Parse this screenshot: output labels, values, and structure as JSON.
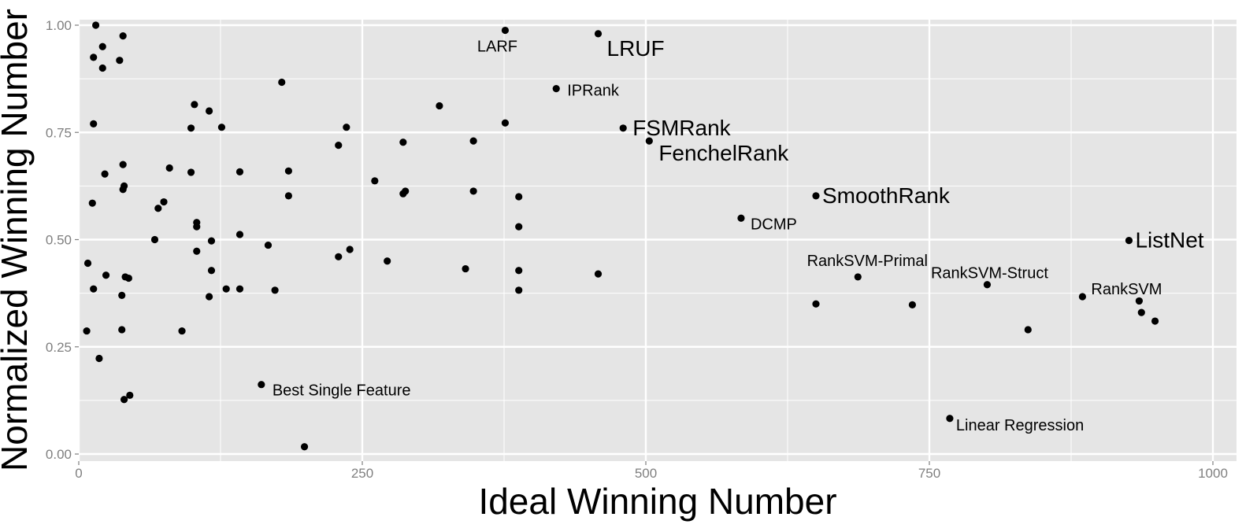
{
  "chart_data": {
    "type": "scatter",
    "title": "",
    "xlabel": "Ideal Winning Number",
    "ylabel": "Normalized Winning Number",
    "xlim": [
      0,
      1000
    ],
    "ylim": [
      0,
      1.0
    ],
    "x_ticks": [
      0,
      250,
      500,
      750,
      1000
    ],
    "x_tick_labels": [
      "0",
      "250",
      "500",
      "750",
      "1000"
    ],
    "y_ticks": [
      0,
      0.25,
      0.5,
      0.75,
      1.0
    ],
    "y_tick_labels": [
      "0.00",
      "0.25",
      "0.50",
      "0.75",
      "1.00"
    ],
    "grid": true,
    "background": "#e5e5e5",
    "grid_color": "#ffffff",
    "point_color": "#000000",
    "points": [
      {
        "x": 15,
        "y": 1.0
      },
      {
        "x": 39,
        "y": 0.975
      },
      {
        "x": 21,
        "y": 0.95
      },
      {
        "x": 13,
        "y": 0.925
      },
      {
        "x": 36,
        "y": 0.918
      },
      {
        "x": 21,
        "y": 0.9
      },
      {
        "x": 13,
        "y": 0.77
      },
      {
        "x": 39,
        "y": 0.675
      },
      {
        "x": 23,
        "y": 0.653
      },
      {
        "x": 40,
        "y": 0.625
      },
      {
        "x": 39,
        "y": 0.617
      },
      {
        "x": 12,
        "y": 0.585
      },
      {
        "x": 8,
        "y": 0.445
      },
      {
        "x": 24,
        "y": 0.417
      },
      {
        "x": 41,
        "y": 0.413
      },
      {
        "x": 44,
        "y": 0.41
      },
      {
        "x": 13,
        "y": 0.385
      },
      {
        "x": 38,
        "y": 0.37
      },
      {
        "x": 38,
        "y": 0.29
      },
      {
        "x": 7,
        "y": 0.287
      },
      {
        "x": 18,
        "y": 0.223
      },
      {
        "x": 45,
        "y": 0.137
      },
      {
        "x": 40,
        "y": 0.127
      },
      {
        "x": 80,
        "y": 0.667
      },
      {
        "x": 75,
        "y": 0.588
      },
      {
        "x": 70,
        "y": 0.573
      },
      {
        "x": 67,
        "y": 0.5
      },
      {
        "x": 91,
        "y": 0.287
      },
      {
        "x": 102,
        "y": 0.815
      },
      {
        "x": 99,
        "y": 0.76
      },
      {
        "x": 99,
        "y": 0.657
      },
      {
        "x": 104,
        "y": 0.54
      },
      {
        "x": 104,
        "y": 0.53
      },
      {
        "x": 104,
        "y": 0.473
      },
      {
        "x": 115,
        "y": 0.8
      },
      {
        "x": 117,
        "y": 0.497
      },
      {
        "x": 117,
        "y": 0.428
      },
      {
        "x": 115,
        "y": 0.367
      },
      {
        "x": 126,
        "y": 0.762
      },
      {
        "x": 130,
        "y": 0.385
      },
      {
        "x": 142,
        "y": 0.658
      },
      {
        "x": 142,
        "y": 0.512
      },
      {
        "x": 142,
        "y": 0.385
      },
      {
        "x": 161,
        "y": 0.162
      },
      {
        "x": 167,
        "y": 0.487
      },
      {
        "x": 173,
        "y": 0.382
      },
      {
        "x": 179,
        "y": 0.867
      },
      {
        "x": 185,
        "y": 0.66
      },
      {
        "x": 185,
        "y": 0.602
      },
      {
        "x": 199,
        "y": 0.017
      },
      {
        "x": 229,
        "y": 0.72
      },
      {
        "x": 236,
        "y": 0.762
      },
      {
        "x": 229,
        "y": 0.46
      },
      {
        "x": 239,
        "y": 0.477
      },
      {
        "x": 261,
        "y": 0.637
      },
      {
        "x": 272,
        "y": 0.45
      },
      {
        "x": 286,
        "y": 0.727
      },
      {
        "x": 286,
        "y": 0.607
      },
      {
        "x": 288,
        "y": 0.613
      },
      {
        "x": 318,
        "y": 0.812
      },
      {
        "x": 341,
        "y": 0.432
      },
      {
        "x": 348,
        "y": 0.73
      },
      {
        "x": 348,
        "y": 0.613
      },
      {
        "x": 376,
        "y": 0.988
      },
      {
        "x": 376,
        "y": 0.772
      },
      {
        "x": 388,
        "y": 0.6
      },
      {
        "x": 388,
        "y": 0.53
      },
      {
        "x": 388,
        "y": 0.428
      },
      {
        "x": 388,
        "y": 0.382
      },
      {
        "x": 421,
        "y": 0.852
      },
      {
        "x": 458,
        "y": 0.98
      },
      {
        "x": 458,
        "y": 0.42
      },
      {
        "x": 480,
        "y": 0.76
      },
      {
        "x": 503,
        "y": 0.73
      },
      {
        "x": 584,
        "y": 0.55
      },
      {
        "x": 650,
        "y": 0.602
      },
      {
        "x": 650,
        "y": 0.35
      },
      {
        "x": 687,
        "y": 0.413
      },
      {
        "x": 735,
        "y": 0.348
      },
      {
        "x": 768,
        "y": 0.083
      },
      {
        "x": 801,
        "y": 0.395
      },
      {
        "x": 837,
        "y": 0.29
      },
      {
        "x": 885,
        "y": 0.367
      },
      {
        "x": 926,
        "y": 0.498
      },
      {
        "x": 935,
        "y": 0.357
      },
      {
        "x": 937,
        "y": 0.33
      },
      {
        "x": 949,
        "y": 0.31
      }
    ],
    "annotations": [
      {
        "text": "LARF",
        "x": 376,
        "y": 0.988,
        "size": 20,
        "anchor": "middle",
        "dx": -10,
        "dy": 27
      },
      {
        "text": "LRUF",
        "x": 458,
        "y": 0.98,
        "size": 28,
        "anchor": "start",
        "dx": 11,
        "dy": 28
      },
      {
        "text": "IPRank",
        "x": 421,
        "y": 0.852,
        "size": 20,
        "anchor": "start",
        "dx": 14,
        "dy": 9
      },
      {
        "text": "FSMRank",
        "x": 480,
        "y": 0.76,
        "size": 28,
        "anchor": "start",
        "dx": 12,
        "dy": 9
      },
      {
        "text": "FenchelRank",
        "x": 503,
        "y": 0.73,
        "size": 28,
        "anchor": "start",
        "dx": 12,
        "dy": 25
      },
      {
        "text": "SmoothRank",
        "x": 650,
        "y": 0.602,
        "size": 28,
        "anchor": "start",
        "dx": 8,
        "dy": 9
      },
      {
        "text": "DCMP",
        "x": 584,
        "y": 0.55,
        "size": 20,
        "anchor": "start",
        "dx": 12,
        "dy": 14
      },
      {
        "text": "ListNet",
        "x": 926,
        "y": 0.498,
        "size": 28,
        "anchor": "start",
        "dx": 8,
        "dy": 9
      },
      {
        "text": "RankSVM-Primal",
        "x": 687,
        "y": 0.413,
        "size": 20,
        "anchor": "middle",
        "dx": 12,
        "dy": -14
      },
      {
        "text": "RankSVM-Struct",
        "x": 801,
        "y": 0.395,
        "size": 20,
        "anchor": "middle",
        "dx": 3,
        "dy": -8
      },
      {
        "text": "RankSVM",
        "x": 885,
        "y": 0.367,
        "size": 20,
        "anchor": "start",
        "dx": 11,
        "dy": -3
      },
      {
        "text": "Best Single Feature",
        "x": 161,
        "y": 0.162,
        "size": 20,
        "anchor": "start",
        "dx": 14,
        "dy": 14
      },
      {
        "text": "Linear Regression",
        "x": 768,
        "y": 0.083,
        "size": 20,
        "anchor": "start",
        "dx": 8,
        "dy": 15
      }
    ]
  }
}
